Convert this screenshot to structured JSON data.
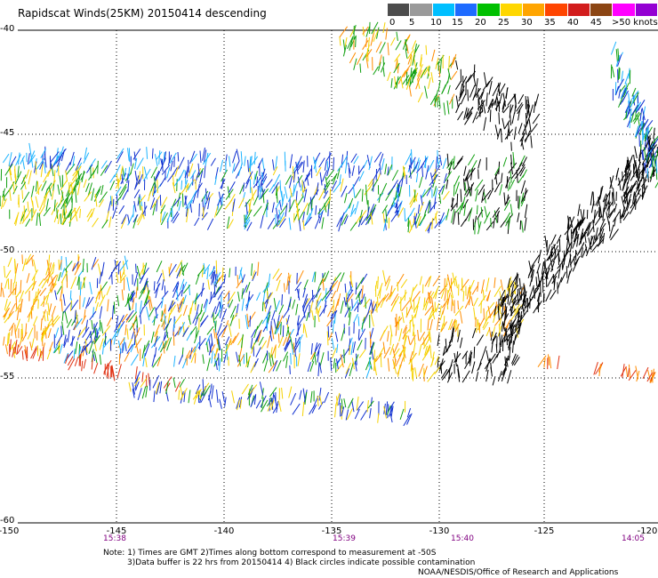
{
  "title": "Rapidscat Winds(25KM) 20150414 descending",
  "legend": {
    "labels": [
      "0",
      "5",
      "10",
      "15",
      "20",
      "25",
      "30",
      "35",
      "40",
      "45",
      ">50 knots"
    ],
    "colors": [
      "#4c4c4c",
      "#9a9a9a",
      "#00bfff",
      "#1e6bff",
      "#0000cd",
      "#00a000",
      "#ffd700",
      "#ffa500",
      "#ff4500",
      "#d21c1c",
      "#8b4513",
      "#ff00ff",
      "#9400d3",
      "#4b0082"
    ]
  },
  "axes": {
    "lat_labels": [
      "-40",
      "-45",
      "-50",
      "-55",
      "-60"
    ],
    "lon_labels": [
      "-150",
      "-145",
      "-140",
      "-135",
      "-130",
      "-125",
      "-120"
    ],
    "times": [
      "15:38",
      "15:39",
      "15:40",
      "14:05"
    ]
  },
  "notes": {
    "line1": "Note: 1) Times are GMT 2)Times along bottom correspond to measurement at -50S",
    "line2": "3)Data buffer is 22 hrs from 20150414 4) Black circles indicate possible contamination",
    "credit": "NOAA/NESDIS/Office of Research and Applications"
  }
}
